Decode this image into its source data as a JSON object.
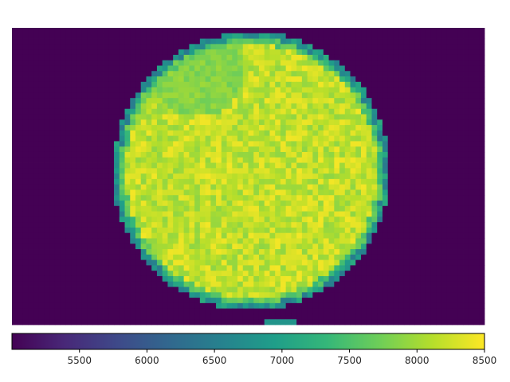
{
  "chart_data": {
    "type": "heatmap",
    "title": "",
    "xlabel": "",
    "ylabel": "",
    "colormap": "viridis",
    "background_value": 5000,
    "grid_size": [
      88,
      55
    ],
    "disk": {
      "center_col": 44.6,
      "center_row": 26.6,
      "radius": 25.8,
      "interior_value_range": [
        7900,
        8450
      ],
      "upper_left_region_value": 7700,
      "edge_value_range": [
        6400,
        7200
      ],
      "stem_at_bottom_value": 6800
    },
    "colorbar": {
      "orientation": "horizontal",
      "vmin": 5000,
      "vmax": 8500,
      "ticks": [
        5500,
        6000,
        6500,
        7000,
        7500,
        8000,
        8500
      ],
      "tick_labels": [
        "5500",
        "6000",
        "6500",
        "7000",
        "7500",
        "8000",
        "8500"
      ]
    },
    "colors": {
      "viridis_stops": [
        "#440154",
        "#482878",
        "#3e4989",
        "#31688e",
        "#26828e",
        "#1f9e89",
        "#35b779",
        "#6ece58",
        "#b5de2b",
        "#fde725"
      ]
    }
  }
}
